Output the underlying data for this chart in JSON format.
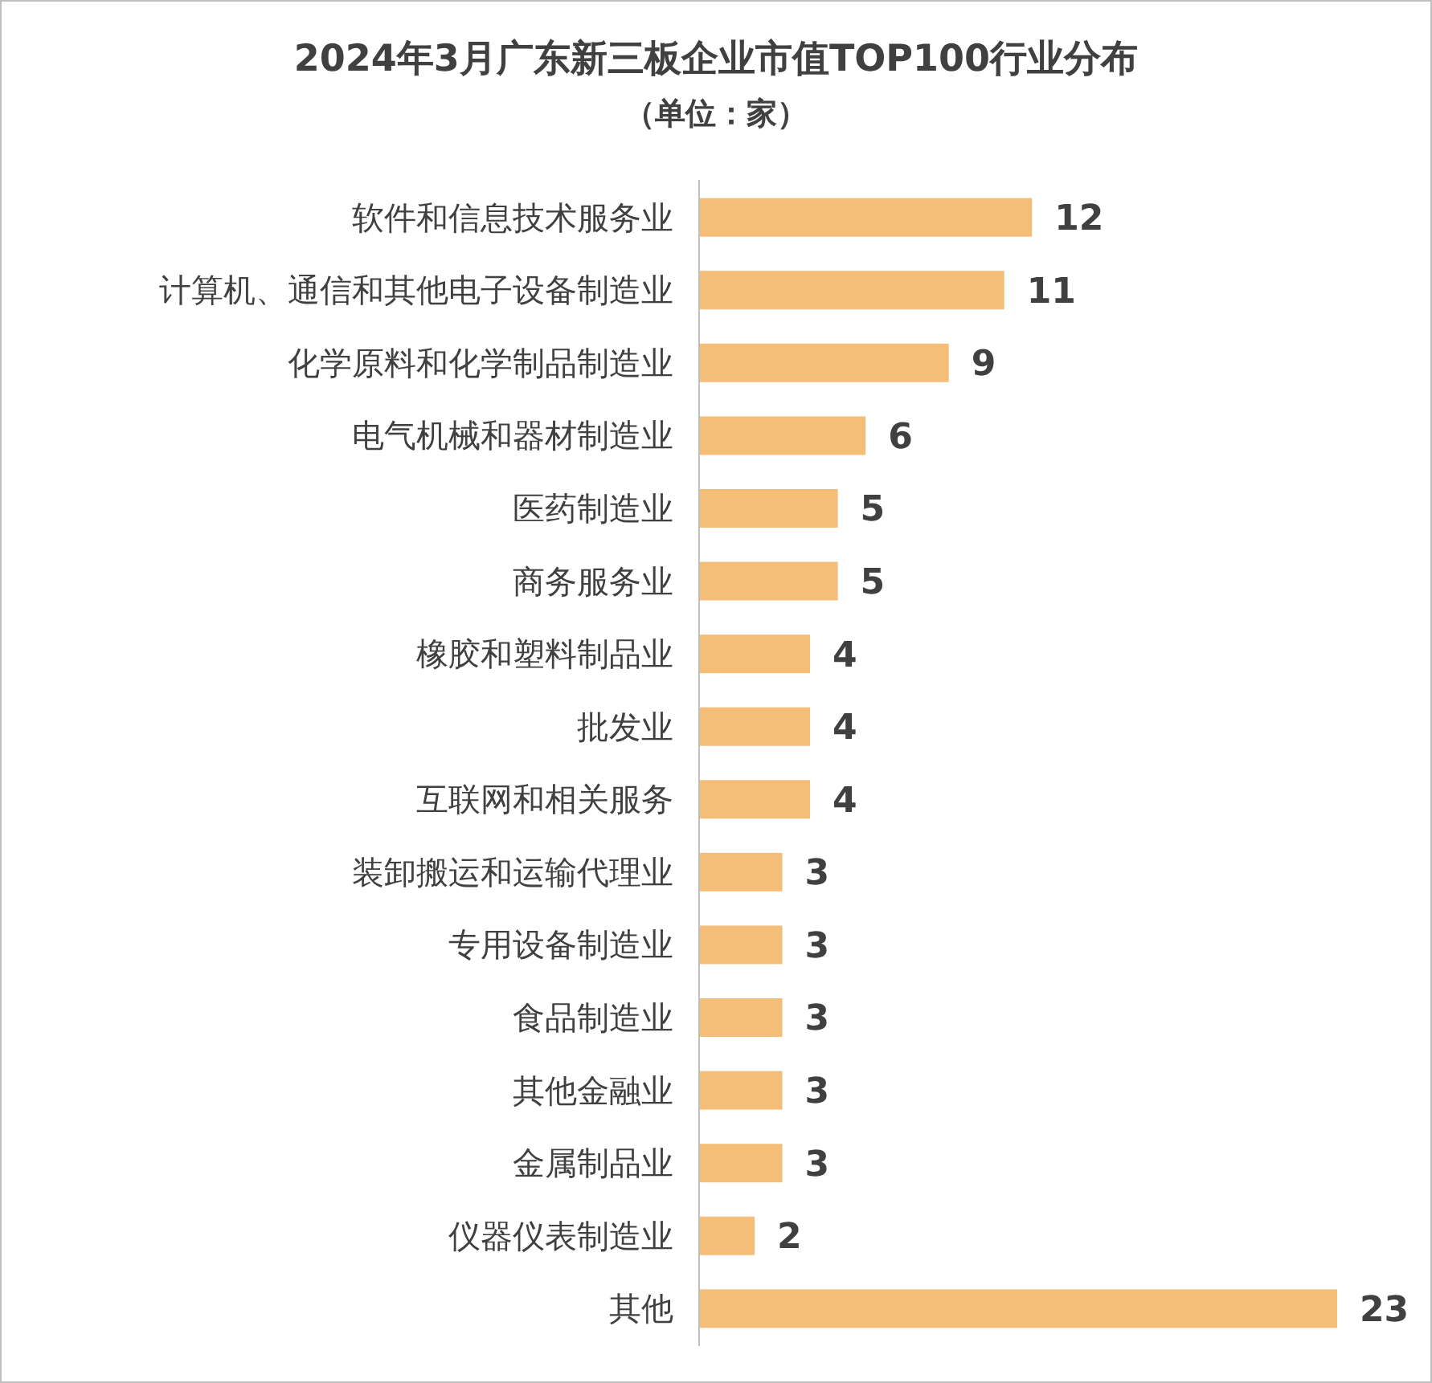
{
  "chart_data": {
    "type": "bar",
    "orientation": "horizontal",
    "title": "2024年3月广东新三板企业市值TOP100行业分布",
    "subtitle": "（单位：家）",
    "categories": [
      "软件和信息技术服务业",
      "计算机、通信和其他电子设备制造业",
      "化学原料和化学制品制造业",
      "电气机械和器材制造业",
      "医药制造业",
      "商务服务业",
      "橡胶和塑料制品业",
      "批发业",
      "互联网和相关服务",
      "装卸搬运和运输代理业",
      "专用设备制造业",
      "食品制造业",
      "其他金融业",
      "金属制品业",
      "仪器仪表制造业",
      "其他"
    ],
    "values": [
      12,
      11,
      9,
      6,
      5,
      5,
      4,
      4,
      4,
      3,
      3,
      3,
      3,
      3,
      2,
      23
    ],
    "color": "#f5be78",
    "data_labels": true
  }
}
